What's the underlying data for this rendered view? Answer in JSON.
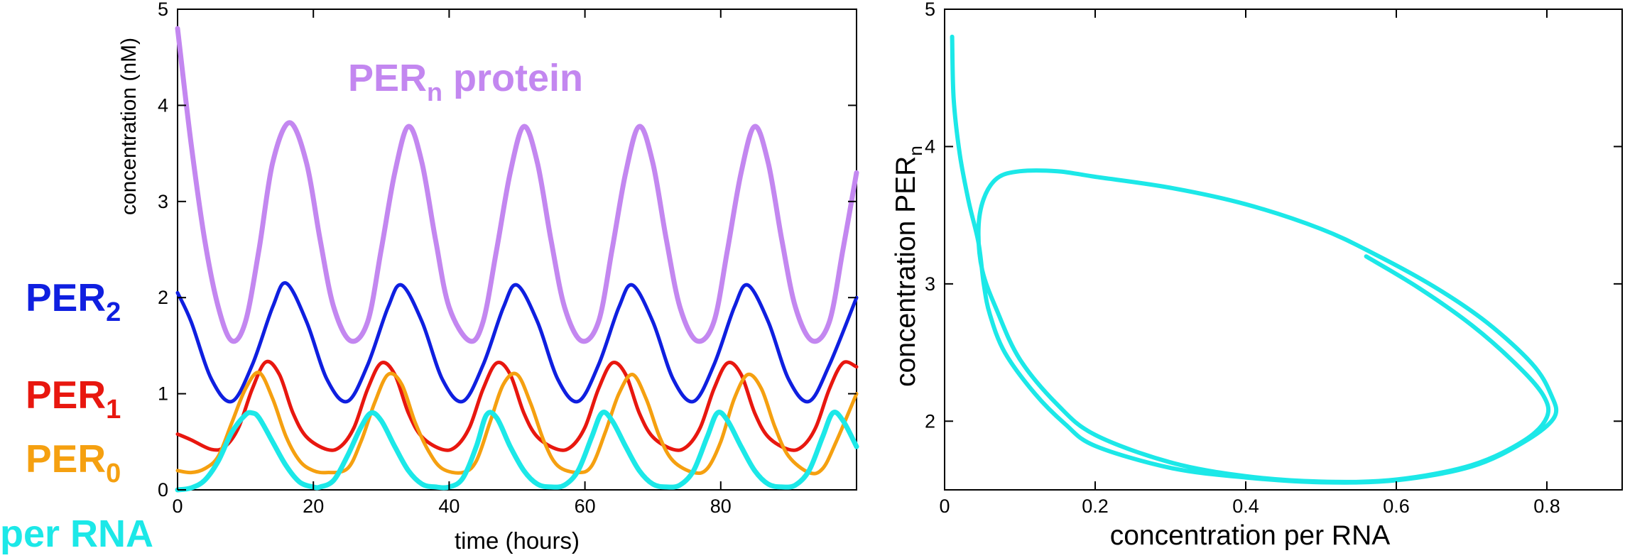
{
  "chart_data": [
    {
      "type": "line",
      "xlabel": "time (hours)",
      "ylabel": "concentration (nM)",
      "xlim": [
        0,
        100
      ],
      "ylim": [
        0,
        5
      ],
      "x_ticks": [
        0,
        20,
        40,
        60,
        80
      ],
      "y_ticks": [
        0,
        1,
        2,
        3,
        4,
        5
      ],
      "grid": false,
      "series": [
        {
          "name": "PER",
          "sub": "n",
          "suffix": " protein",
          "color": "#c387f0",
          "label_style": "normal",
          "x": [
            0,
            2,
            4,
            6,
            8,
            10,
            12,
            14,
            16.5,
            19,
            21,
            23,
            25.5,
            28,
            30,
            32,
            34,
            36,
            38,
            40,
            43,
            45,
            47,
            49,
            51,
            53,
            55,
            57,
            59.5,
            62,
            64,
            66,
            68,
            70,
            72,
            74,
            76.5,
            79,
            81,
            83,
            85,
            87,
            89,
            91,
            93.5,
            96,
            98,
            100
          ],
          "y": [
            4.8,
            3.6,
            2.6,
            1.9,
            1.55,
            1.75,
            2.5,
            3.4,
            3.82,
            3.4,
            2.6,
            1.9,
            1.55,
            1.75,
            2.5,
            3.3,
            3.78,
            3.4,
            2.6,
            1.9,
            1.55,
            1.75,
            2.5,
            3.3,
            3.78,
            3.4,
            2.6,
            1.9,
            1.55,
            1.75,
            2.5,
            3.3,
            3.78,
            3.4,
            2.6,
            1.9,
            1.55,
            1.75,
            2.5,
            3.3,
            3.78,
            3.4,
            2.6,
            1.9,
            1.55,
            1.75,
            2.5,
            3.3
          ]
        },
        {
          "name": "PER",
          "sub": "2",
          "suffix": "",
          "color": "#0f1fe0",
          "label_style": "bold",
          "x": [
            0,
            2,
            5,
            8,
            11,
            14,
            16,
            19,
            22,
            25,
            28,
            31,
            33,
            36,
            39,
            42,
            45,
            48,
            50,
            53,
            56,
            59,
            62,
            65,
            67,
            70,
            73,
            76,
            79,
            82,
            84,
            87,
            90,
            93,
            96,
            100
          ],
          "y": [
            2.05,
            1.75,
            1.15,
            0.92,
            1.3,
            1.9,
            2.15,
            1.75,
            1.15,
            0.92,
            1.3,
            1.9,
            2.13,
            1.75,
            1.15,
            0.92,
            1.3,
            1.9,
            2.13,
            1.75,
            1.15,
            0.92,
            1.3,
            1.9,
            2.13,
            1.75,
            1.15,
            0.92,
            1.3,
            1.9,
            2.13,
            1.75,
            1.15,
            0.92,
            1.3,
            2.0
          ]
        },
        {
          "name": "PER",
          "sub": "1",
          "suffix": "",
          "color": "#e8170f",
          "label_style": "bold",
          "x": [
            0,
            2,
            5,
            7,
            9,
            11,
            13,
            15,
            17,
            19,
            22,
            24,
            26,
            28,
            30,
            32,
            34,
            36,
            39,
            41,
            43,
            45,
            47,
            49,
            51,
            53,
            56,
            58,
            60,
            62,
            64,
            66,
            68,
            70,
            73,
            75,
            77,
            79,
            81,
            83,
            85,
            87,
            90,
            92,
            94,
            96,
            98,
            100
          ],
          "y": [
            0.58,
            0.52,
            0.42,
            0.45,
            0.65,
            1.05,
            1.33,
            1.2,
            0.8,
            0.55,
            0.42,
            0.45,
            0.65,
            1.05,
            1.32,
            1.2,
            0.8,
            0.55,
            0.42,
            0.45,
            0.65,
            1.05,
            1.32,
            1.2,
            0.8,
            0.55,
            0.42,
            0.45,
            0.65,
            1.05,
            1.32,
            1.2,
            0.8,
            0.55,
            0.42,
            0.45,
            0.65,
            1.05,
            1.32,
            1.2,
            0.8,
            0.55,
            0.42,
            0.45,
            0.65,
            1.05,
            1.32,
            1.28
          ]
        },
        {
          "name": "PER",
          "sub": "0",
          "suffix": "",
          "color": "#f5a010",
          "label_style": "bold",
          "x": [
            0,
            2,
            4,
            6,
            8,
            10,
            12,
            14,
            16,
            18,
            20,
            22,
            25,
            27,
            29,
            31,
            33,
            35,
            37,
            39,
            42,
            44,
            46,
            48,
            50,
            52,
            54,
            56,
            59,
            61,
            63,
            65,
            67,
            69,
            71,
            73,
            76,
            78,
            80,
            82,
            84,
            86,
            88,
            90,
            93,
            95,
            97,
            100
          ],
          "y": [
            0.2,
            0.18,
            0.22,
            0.35,
            0.7,
            1.05,
            1.22,
            0.95,
            0.55,
            0.3,
            0.2,
            0.18,
            0.22,
            0.5,
            0.9,
            1.2,
            1.1,
            0.7,
            0.4,
            0.22,
            0.18,
            0.3,
            0.7,
            1.1,
            1.2,
            0.9,
            0.5,
            0.25,
            0.18,
            0.25,
            0.6,
            1.0,
            1.2,
            0.95,
            0.55,
            0.3,
            0.18,
            0.22,
            0.5,
            0.95,
            1.2,
            1.05,
            0.65,
            0.35,
            0.18,
            0.22,
            0.5,
            1.0
          ]
        },
        {
          "name": "per RNA",
          "sub": "",
          "suffix": "",
          "color": "#1ce8e8",
          "label_style": "normal",
          "x": [
            0,
            2,
            4,
            6,
            8,
            10,
            11,
            12,
            14,
            16,
            18,
            20,
            21,
            23,
            25,
            27,
            28.5,
            30,
            32,
            34,
            36,
            38,
            40,
            42,
            44,
            45.5,
            47,
            49,
            51,
            53,
            55,
            57,
            59,
            61,
            62.5,
            64,
            66,
            68,
            70,
            72,
            74,
            76,
            78,
            79.5,
            81,
            83,
            85,
            87,
            89,
            91,
            93,
            95,
            96.5,
            98,
            100
          ],
          "y": [
            0,
            0.02,
            0.1,
            0.3,
            0.6,
            0.78,
            0.8,
            0.75,
            0.5,
            0.25,
            0.08,
            0.03,
            0.03,
            0.1,
            0.35,
            0.65,
            0.8,
            0.72,
            0.45,
            0.2,
            0.06,
            0.03,
            0.03,
            0.12,
            0.45,
            0.78,
            0.75,
            0.45,
            0.2,
            0.06,
            0.03,
            0.05,
            0.2,
            0.55,
            0.8,
            0.72,
            0.45,
            0.2,
            0.06,
            0.03,
            0.05,
            0.2,
            0.55,
            0.8,
            0.72,
            0.45,
            0.2,
            0.06,
            0.03,
            0.05,
            0.2,
            0.55,
            0.8,
            0.72,
            0.45
          ]
        }
      ]
    },
    {
      "type": "line",
      "xlabel": "concentration per RNA",
      "ylabel_main": "concentration PER",
      "ylabel_sub": "n",
      "xlim": [
        0,
        0.9
      ],
      "ylim": [
        1.5,
        5
      ],
      "x_ticks": [
        0,
        0.2,
        0.4,
        0.6,
        0.8
      ],
      "x_tick_labels": [
        "0",
        "0.2",
        "0.4",
        "0.6",
        "0.8"
      ],
      "y_ticks": [
        2,
        3,
        4,
        5
      ],
      "grid": false,
      "series": [
        {
          "color": "#1ce8e8",
          "x": [
            0.01,
            0.012,
            0.02,
            0.032,
            0.045,
            0.052,
            0.06,
            0.08,
            0.12,
            0.16,
            0.2,
            0.3,
            0.4,
            0.5,
            0.6,
            0.7,
            0.77,
            0.81,
            0.805,
            0.78,
            0.72,
            0.65,
            0.57,
            0.5,
            0.4,
            0.3,
            0.2,
            0.15,
            0.1,
            0.07,
            0.052,
            0.045,
            0.05,
            0.07,
            0.1,
            0.15,
            0.2,
            0.3,
            0.4,
            0.5,
            0.6,
            0.7,
            0.77,
            0.8,
            0.795,
            0.76,
            0.7,
            0.63,
            0.56
          ],
          "y": [
            4.8,
            4.35,
            3.95,
            3.6,
            3.3,
            3.0,
            2.78,
            2.5,
            2.2,
            1.98,
            1.82,
            1.66,
            1.59,
            1.555,
            1.57,
            1.67,
            1.85,
            2.03,
            2.2,
            2.42,
            2.72,
            2.98,
            3.22,
            3.4,
            3.58,
            3.7,
            3.78,
            3.82,
            3.82,
            3.77,
            3.62,
            3.4,
            3.1,
            2.8,
            2.45,
            2.12,
            1.9,
            1.7,
            1.6,
            1.56,
            1.575,
            1.68,
            1.86,
            2.03,
            2.19,
            2.41,
            2.7,
            2.97,
            3.2
          ]
        }
      ]
    }
  ]
}
